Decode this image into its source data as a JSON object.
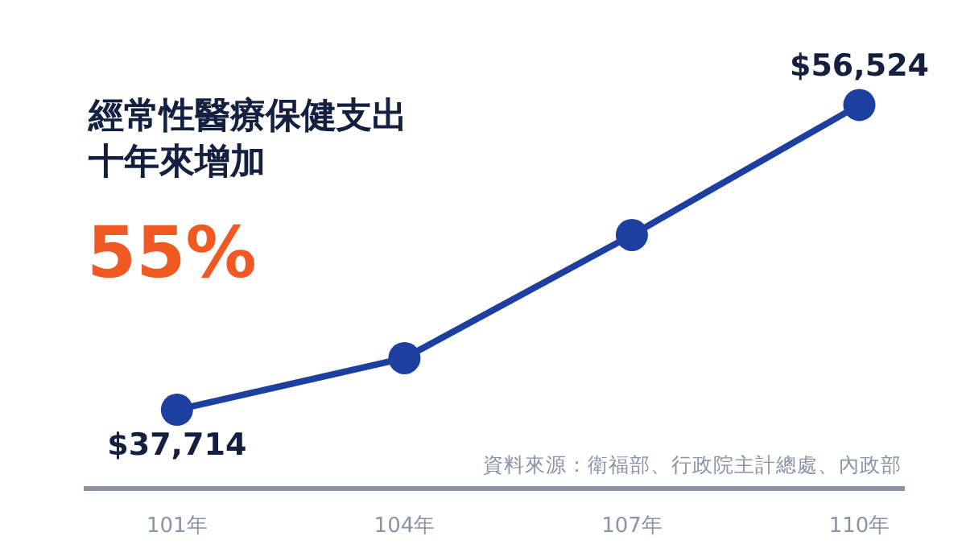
{
  "chart_data": {
    "type": "line",
    "title": "經常性醫療保健支出十年來增加",
    "annotations": [
      "55%",
      "資料來源：衛福部、行政院主計總處、內政部"
    ],
    "categories": [
      "101年",
      "104年",
      "107年",
      "110年"
    ],
    "series": [
      {
        "color": "#1c3fa0",
        "values": [
          37714,
          40900,
          48500,
          56524
        ],
        "value_labels": [
          "$37,714",
          null,
          null,
          "$56,524"
        ]
      }
    ],
    "ylim": [
      33000,
      63000
    ],
    "tick_labels": "x",
    "marker": "circle",
    "line_style": "solid"
  }
}
